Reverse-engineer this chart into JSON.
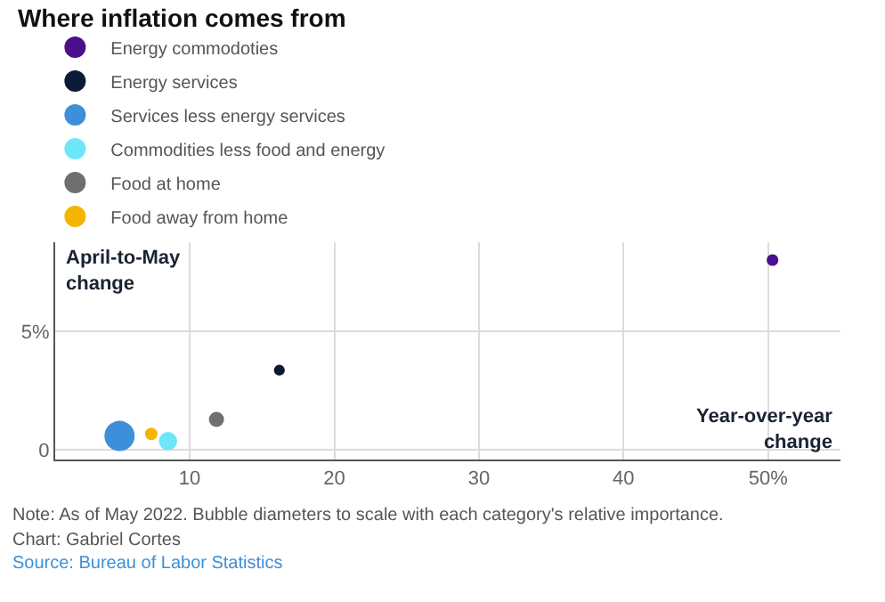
{
  "chart_data": {
    "type": "bubble",
    "title": "Where inflation comes from",
    "xlabel": "Year-over-year change",
    "ylabel": "April-to-May change",
    "series": [
      {
        "name": "Energy commodoties",
        "color": "#4b0f8c",
        "x": [
          50.3
        ],
        "values": [
          8.0
        ],
        "sizes": [
          0.15
        ]
      },
      {
        "name": "Energy services",
        "color": "#0b1a36",
        "x": [
          16.2
        ],
        "values": [
          3.36
        ],
        "sizes": [
          0.13
        ]
      },
      {
        "name": "Services less energy services",
        "color": "#3d8fd9",
        "x": [
          5.15
        ],
        "values": [
          0.59
        ],
        "sizes": [
          1
        ]
      },
      {
        "name": "Commodities less food and energy",
        "color": "#6ee6fa",
        "x": [
          8.5
        ],
        "values": [
          0.38
        ],
        "sizes": [
          0.37
        ]
      },
      {
        "name": "Food at home",
        "color": "#6f6f6f",
        "x": [
          11.85
        ],
        "values": [
          1.29
        ],
        "sizes": [
          0.25
        ]
      },
      {
        "name": "Food away from home",
        "color": "#f5b400",
        "x": [
          7.34
        ],
        "values": [
          0.68
        ],
        "sizes": [
          0.17
        ]
      }
    ],
    "xlim": [
      0.7,
      55
    ],
    "ylim": [
      -0.4,
      8.75
    ],
    "xticks": [
      10,
      20,
      30,
      40,
      {
        "value": 50,
        "label": "50%"
      }
    ],
    "yticks": [
      0,
      {
        "value": 5,
        "label": "5%"
      }
    ],
    "grid": true,
    "legend": "top left",
    "annotations": [
      "Note: As of May 2022. Bubble diameters to scale with each category's relative importance.",
      "Chart: Gabriel Cortes",
      "Source: Bureau of Labor Statistics"
    ]
  }
}
